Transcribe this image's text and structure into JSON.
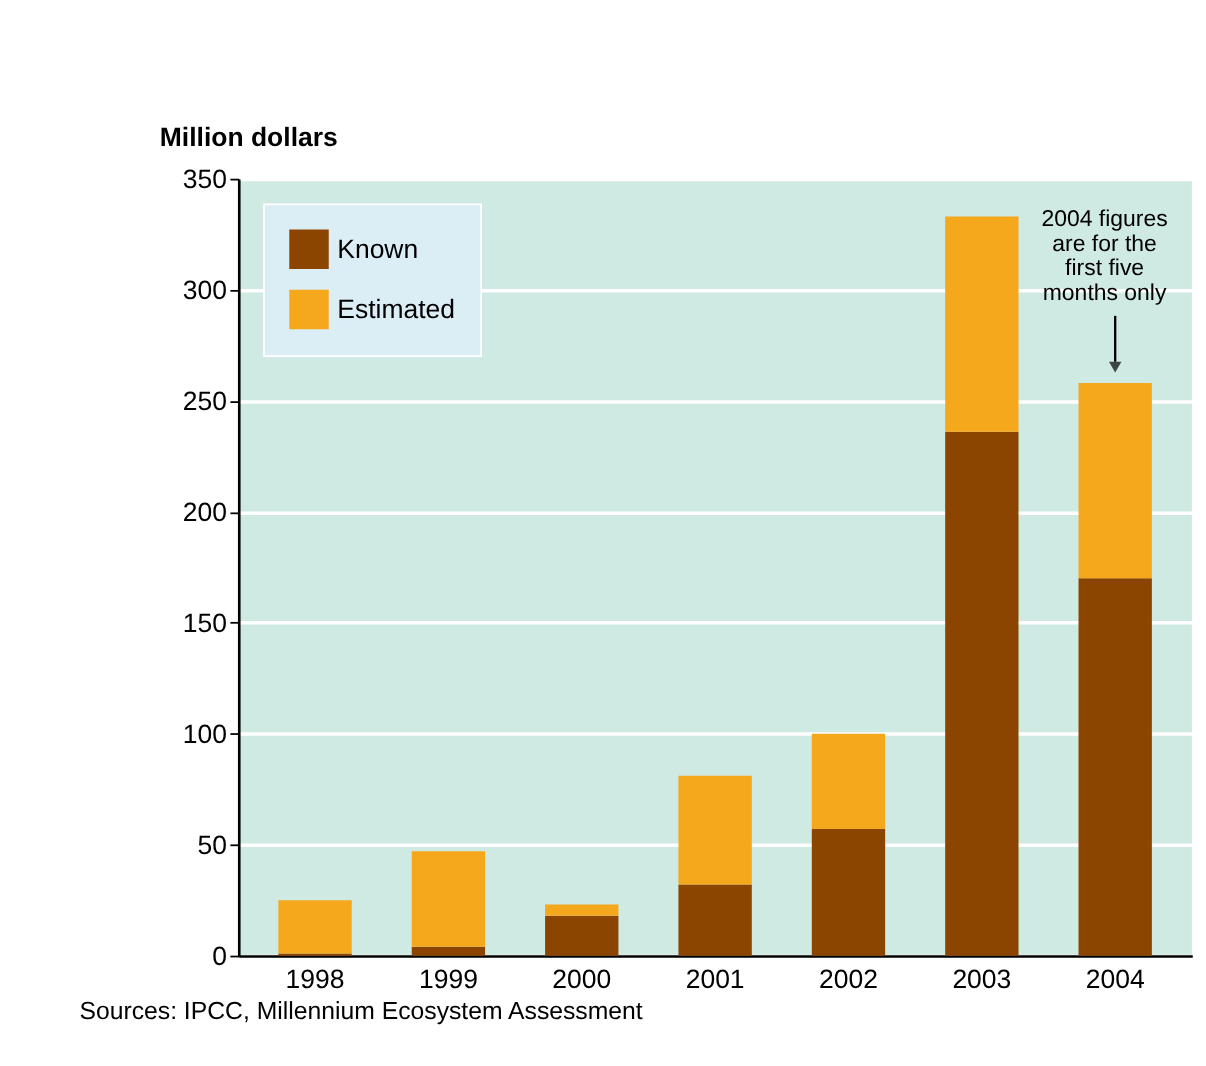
{
  "chart_data": {
    "type": "bar",
    "ylabel": "Million dollars",
    "categories": [
      "1998",
      "1999",
      "2000",
      "2001",
      "2002",
      "2003",
      "2004"
    ],
    "series": [
      {
        "name": "Known",
        "color": "#8b4500",
        "values": [
          1,
          4,
          18,
          32,
          57,
          236,
          170
        ]
      },
      {
        "name": "Estimated",
        "color": "#f5a81c",
        "values": [
          24,
          43,
          5,
          49,
          43,
          97,
          88
        ]
      }
    ],
    "stacked": true,
    "ylim": [
      0,
      350
    ],
    "yticks": [
      0,
      50,
      100,
      150,
      200,
      250,
      300,
      350
    ],
    "grid": "y",
    "legend": "top left",
    "annotations": [
      "2004 figures\nare for the\nfirst five\nmonths only",
      "Sources: IPCC, Millennium Ecosystem Assessment"
    ]
  }
}
